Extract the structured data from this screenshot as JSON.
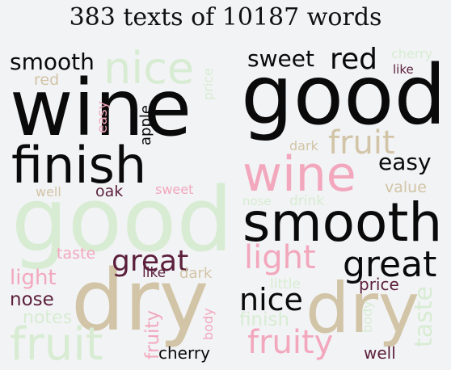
{
  "title": "383 texts of 10187 words",
  "colors": {
    "black": "#0a0a0a",
    "maroon": "#5b1f3c",
    "pink": "#f2a7bd",
    "tan": "#d2c4a6",
    "mint": "#d7ecd2",
    "background": "#f2f3f5"
  },
  "chart_data": [
    {
      "type": "wordcloud",
      "words": [
        {
          "text": "wine",
          "color": "black",
          "vertical": false
        },
        {
          "text": "good",
          "color": "mint",
          "vertical": false
        },
        {
          "text": "dry",
          "color": "tan",
          "vertical": false
        },
        {
          "text": "finish",
          "color": "black",
          "vertical": false
        },
        {
          "text": "fruit",
          "color": "mint",
          "vertical": false
        },
        {
          "text": "nice",
          "color": "mint",
          "vertical": false
        },
        {
          "text": "smooth",
          "color": "black",
          "vertical": false
        },
        {
          "text": "great",
          "color": "maroon",
          "vertical": false
        },
        {
          "text": "light",
          "color": "pink",
          "vertical": false
        },
        {
          "text": "nose",
          "color": "maroon",
          "vertical": false
        },
        {
          "text": "notes",
          "color": "mint",
          "vertical": false
        },
        {
          "text": "taste",
          "color": "pink",
          "vertical": false
        },
        {
          "text": "red",
          "color": "tan",
          "vertical": false
        },
        {
          "text": "oak",
          "color": "maroon",
          "vertical": false
        },
        {
          "text": "well",
          "color": "tan",
          "vertical": false
        },
        {
          "text": "sweet",
          "color": "pink",
          "vertical": false
        },
        {
          "text": "like",
          "color": "maroon",
          "vertical": false
        },
        {
          "text": "dark",
          "color": "tan",
          "vertical": false
        },
        {
          "text": "cherry",
          "color": "black",
          "vertical": false
        },
        {
          "text": "apple",
          "color": "black",
          "vertical": true
        },
        {
          "text": "easy",
          "color": "pink",
          "vertical": true
        },
        {
          "text": "price",
          "color": "mint",
          "vertical": true
        },
        {
          "text": "fruity",
          "color": "pink",
          "vertical": true
        },
        {
          "text": "body",
          "color": "pink",
          "vertical": true
        }
      ]
    },
    {
      "type": "wordcloud",
      "words": [
        {
          "text": "good",
          "color": "black",
          "vertical": false
        },
        {
          "text": "smooth",
          "color": "black",
          "vertical": false
        },
        {
          "text": "wine",
          "color": "pink",
          "vertical": false
        },
        {
          "text": "dry",
          "color": "tan",
          "vertical": false
        },
        {
          "text": "great",
          "color": "black",
          "vertical": false
        },
        {
          "text": "fruit",
          "color": "tan",
          "vertical": false
        },
        {
          "text": "sweet",
          "color": "black",
          "vertical": false
        },
        {
          "text": "red",
          "color": "black",
          "vertical": false
        },
        {
          "text": "nice",
          "color": "black",
          "vertical": false
        },
        {
          "text": "light",
          "color": "pink",
          "vertical": false
        },
        {
          "text": "fruity",
          "color": "pink",
          "vertical": false
        },
        {
          "text": "easy",
          "color": "black",
          "vertical": false
        },
        {
          "text": "price",
          "color": "maroon",
          "vertical": false
        },
        {
          "text": "well",
          "color": "maroon",
          "vertical": false
        },
        {
          "text": "value",
          "color": "tan",
          "vertical": false
        },
        {
          "text": "finish",
          "color": "mint",
          "vertical": false
        },
        {
          "text": "little",
          "color": "mint",
          "vertical": false
        },
        {
          "text": "drink",
          "color": "mint",
          "vertical": false
        },
        {
          "text": "nose",
          "color": "mint",
          "vertical": false
        },
        {
          "text": "dark",
          "color": "tan",
          "vertical": false
        },
        {
          "text": "like",
          "color": "maroon",
          "vertical": false
        },
        {
          "text": "cherry",
          "color": "mint",
          "vertical": false
        },
        {
          "text": "taste",
          "color": "mint",
          "vertical": true
        },
        {
          "text": "body",
          "color": "mint",
          "vertical": true
        }
      ]
    }
  ]
}
